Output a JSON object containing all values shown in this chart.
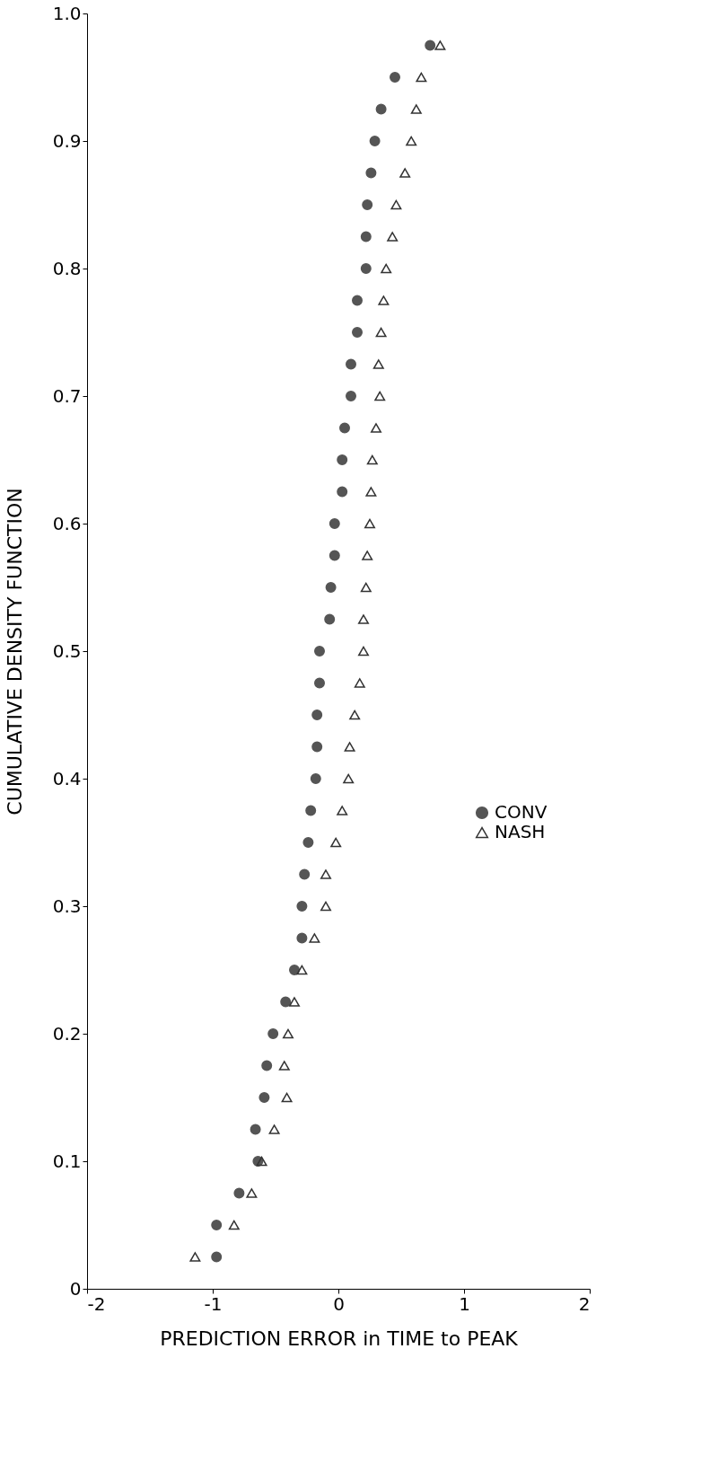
{
  "chart_data": {
    "type": "scatter",
    "xlabel": "PREDICTION ERROR in TIME to PEAK",
    "ylabel": "CUMULATIVE DENSITY FUNCTION",
    "xlim": [
      -2,
      2
    ],
    "xticks": [
      -2,
      -1,
      0,
      1,
      2
    ],
    "ylim": [
      0,
      1
    ],
    "yticks": [
      0,
      0.1,
      0.2,
      0.3,
      0.4,
      0.5,
      0.6,
      0.7,
      0.8,
      0.9,
      {
        "value": 1,
        "label": "1.0"
      }
    ],
    "grid": false,
    "legend": "right",
    "series": [
      {
        "name": "CONV",
        "color": "#555555",
        "marker": "circle",
        "x": [
          -0.97,
          -0.97,
          -0.79,
          -0.64,
          -0.66,
          -0.59,
          -0.57,
          -0.52,
          -0.42,
          -0.35,
          -0.29,
          -0.29,
          -0.27,
          -0.24,
          -0.22,
          -0.18,
          -0.17,
          -0.17,
          -0.15,
          -0.15,
          -0.07,
          -0.06,
          -0.03,
          -0.03,
          0.03,
          0.03,
          0.05,
          0.1,
          0.1,
          0.15,
          0.15,
          0.22,
          0.22,
          0.23,
          0.26,
          0.29,
          0.34,
          0.45,
          0.73
        ],
        "values": [
          0.025,
          0.05,
          0.075,
          0.1,
          0.125,
          0.15,
          0.175,
          0.2,
          0.225,
          0.25,
          0.275,
          0.3,
          0.325,
          0.35,
          0.375,
          0.4,
          0.425,
          0.45,
          0.475,
          0.5,
          0.525,
          0.55,
          0.575,
          0.6,
          0.625,
          0.65,
          0.675,
          0.7,
          0.725,
          0.75,
          0.775,
          0.8,
          0.825,
          0.85,
          0.875,
          0.9,
          0.925,
          0.95,
          0.975
        ]
      },
      {
        "name": "NASH",
        "color": "#333333",
        "marker": "triangle",
        "x": [
          -1.14,
          -0.83,
          -0.69,
          -0.61,
          -0.51,
          -0.41,
          -0.43,
          -0.4,
          -0.35,
          -0.29,
          -0.19,
          -0.1,
          -0.1,
          -0.02,
          0.03,
          0.08,
          0.09,
          0.13,
          0.17,
          0.2,
          0.2,
          0.22,
          0.23,
          0.25,
          0.26,
          0.27,
          0.3,
          0.33,
          0.32,
          0.34,
          0.36,
          0.38,
          0.43,
          0.46,
          0.53,
          0.58,
          0.62,
          0.66,
          0.81
        ],
        "values": [
          0.025,
          0.05,
          0.075,
          0.1,
          0.125,
          0.15,
          0.175,
          0.2,
          0.225,
          0.25,
          0.275,
          0.3,
          0.325,
          0.35,
          0.375,
          0.4,
          0.425,
          0.45,
          0.475,
          0.5,
          0.525,
          0.55,
          0.575,
          0.6,
          0.625,
          0.65,
          0.675,
          0.7,
          0.725,
          0.75,
          0.775,
          0.8,
          0.825,
          0.85,
          0.875,
          0.9,
          0.925,
          0.95,
          0.975
        ]
      }
    ]
  }
}
